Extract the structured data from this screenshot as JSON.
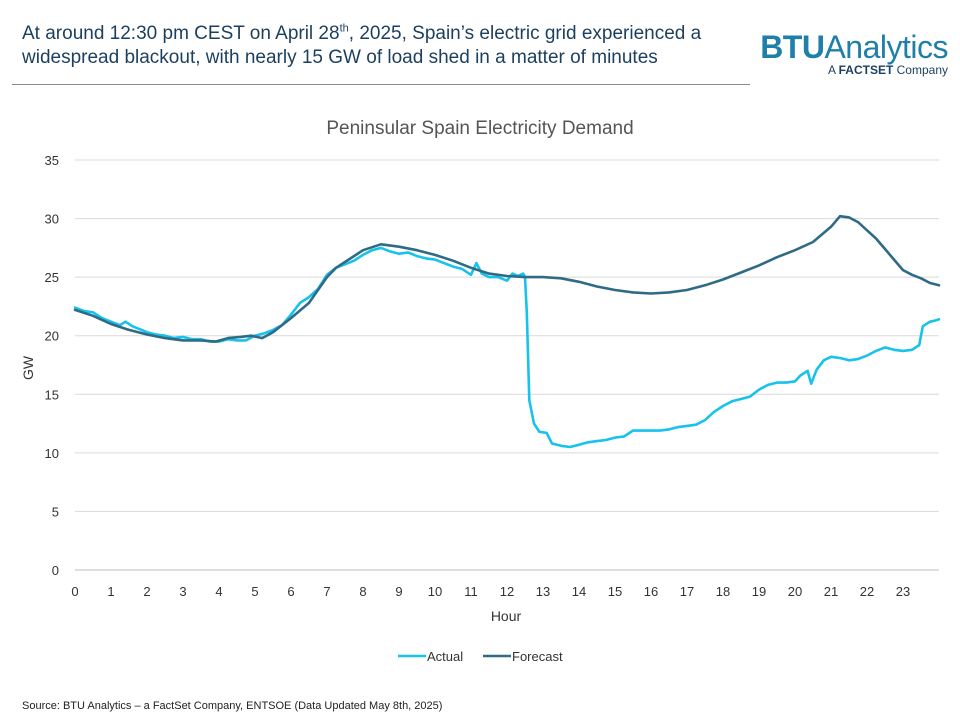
{
  "headline": {
    "part1": "At around 12:30 pm CEST on April 28",
    "sup": "th",
    "part2": ", 2025, Spain’s electric grid experienced a widespread blackout, with nearly 15 GW of load shed in a matter of minutes"
  },
  "logo": {
    "brand": "BTU",
    "name": "Analytics",
    "tagline_prefix": "A ",
    "tagline_brand": "FACTSET",
    "tagline_suffix": " Company"
  },
  "source": "Source: BTU Analytics – a FactSet Company, ENTSOE (Data Updated May 8th, 2025)",
  "colors": {
    "actual": "#17c2ec",
    "forecast": "#2f6b85",
    "grid": "#d9d9d9",
    "axis_text": "#333333"
  },
  "chart_data": {
    "type": "line",
    "title": "Peninsular Spain Electricity Demand",
    "xlabel": "Hour",
    "ylabel": "GW",
    "xlim": [
      0,
      24
    ],
    "ylim": [
      0,
      35
    ],
    "xticks": [
      0,
      1,
      2,
      3,
      4,
      5,
      6,
      7,
      8,
      9,
      10,
      11,
      12,
      13,
      14,
      15,
      16,
      17,
      18,
      19,
      20,
      21,
      22,
      23
    ],
    "yticks": [
      0,
      5,
      10,
      15,
      20,
      25,
      30,
      35
    ],
    "grid": "horizontal",
    "legend": "bottom-center",
    "series": [
      {
        "name": "Actual",
        "points": [
          [
            0,
            22.4
          ],
          [
            0.25,
            22.1
          ],
          [
            0.5,
            22.0
          ],
          [
            0.75,
            21.5
          ],
          [
            1,
            21.2
          ],
          [
            1.25,
            20.9
          ],
          [
            1.4,
            21.2
          ],
          [
            1.6,
            20.8
          ],
          [
            1.85,
            20.5
          ],
          [
            2,
            20.3
          ],
          [
            2.25,
            20.1
          ],
          [
            2.5,
            20.0
          ],
          [
            2.75,
            19.8
          ],
          [
            3,
            19.9
          ],
          [
            3.25,
            19.7
          ],
          [
            3.5,
            19.7
          ],
          [
            3.75,
            19.5
          ],
          [
            4,
            19.5
          ],
          [
            4.25,
            19.7
          ],
          [
            4.5,
            19.6
          ],
          [
            4.75,
            19.6
          ],
          [
            5,
            20.0
          ],
          [
            5.25,
            20.2
          ],
          [
            5.5,
            20.5
          ],
          [
            5.75,
            20.9
          ],
          [
            6,
            21.8
          ],
          [
            6.25,
            22.8
          ],
          [
            6.5,
            23.3
          ],
          [
            6.75,
            24.0
          ],
          [
            7,
            25.2
          ],
          [
            7.25,
            25.8
          ],
          [
            7.5,
            26.1
          ],
          [
            7.75,
            26.4
          ],
          [
            8,
            26.9
          ],
          [
            8.25,
            27.3
          ],
          [
            8.5,
            27.5
          ],
          [
            8.75,
            27.2
          ],
          [
            9,
            27.0
          ],
          [
            9.25,
            27.1
          ],
          [
            9.5,
            26.8
          ],
          [
            9.75,
            26.6
          ],
          [
            10,
            26.5
          ],
          [
            10.25,
            26.2
          ],
          [
            10.5,
            25.9
          ],
          [
            10.75,
            25.7
          ],
          [
            11,
            25.2
          ],
          [
            11.15,
            26.2
          ],
          [
            11.3,
            25.3
          ],
          [
            11.5,
            25.0
          ],
          [
            11.75,
            25.0
          ],
          [
            12,
            24.7
          ],
          [
            12.15,
            25.3
          ],
          [
            12.3,
            25.1
          ],
          [
            12.45,
            25.3
          ],
          [
            12.5,
            25.0
          ],
          [
            12.55,
            22.0
          ],
          [
            12.62,
            14.5
          ],
          [
            12.75,
            12.5
          ],
          [
            12.9,
            11.8
          ],
          [
            13.1,
            11.7
          ],
          [
            13.25,
            10.8
          ],
          [
            13.5,
            10.6
          ],
          [
            13.75,
            10.5
          ],
          [
            14,
            10.7
          ],
          [
            14.25,
            10.9
          ],
          [
            14.5,
            11.0
          ],
          [
            14.75,
            11.1
          ],
          [
            15,
            11.3
          ],
          [
            15.25,
            11.4
          ],
          [
            15.5,
            11.9
          ],
          [
            15.75,
            11.9
          ],
          [
            16,
            11.9
          ],
          [
            16.25,
            11.9
          ],
          [
            16.5,
            12.0
          ],
          [
            16.75,
            12.2
          ],
          [
            17,
            12.3
          ],
          [
            17.25,
            12.4
          ],
          [
            17.5,
            12.8
          ],
          [
            17.75,
            13.5
          ],
          [
            18,
            14.0
          ],
          [
            18.25,
            14.4
          ],
          [
            18.5,
            14.6
          ],
          [
            18.75,
            14.8
          ],
          [
            19,
            15.4
          ],
          [
            19.25,
            15.8
          ],
          [
            19.5,
            16.0
          ],
          [
            19.75,
            16.0
          ],
          [
            20,
            16.1
          ],
          [
            20.15,
            16.6
          ],
          [
            20.35,
            17.0
          ],
          [
            20.45,
            15.9
          ],
          [
            20.6,
            17.1
          ],
          [
            20.8,
            17.9
          ],
          [
            21,
            18.2
          ],
          [
            21.25,
            18.1
          ],
          [
            21.5,
            17.9
          ],
          [
            21.75,
            18.0
          ],
          [
            22,
            18.3
          ],
          [
            22.25,
            18.7
          ],
          [
            22.5,
            19.0
          ],
          [
            22.75,
            18.8
          ],
          [
            23,
            18.7
          ],
          [
            23.25,
            18.8
          ],
          [
            23.45,
            19.2
          ],
          [
            23.55,
            20.8
          ],
          [
            23.75,
            21.2
          ],
          [
            23.9,
            21.3
          ],
          [
            24,
            21.4
          ]
        ]
      },
      {
        "name": "Forecast",
        "points": [
          [
            0,
            22.2
          ],
          [
            0.5,
            21.7
          ],
          [
            1,
            21.0
          ],
          [
            1.5,
            20.5
          ],
          [
            2,
            20.1
          ],
          [
            2.5,
            19.8
          ],
          [
            3,
            19.6
          ],
          [
            3.5,
            19.6
          ],
          [
            3.9,
            19.5
          ],
          [
            4.25,
            19.8
          ],
          [
            4.6,
            19.9
          ],
          [
            4.9,
            20.0
          ],
          [
            5.2,
            19.8
          ],
          [
            5.5,
            20.3
          ],
          [
            6,
            21.5
          ],
          [
            6.5,
            22.8
          ],
          [
            7,
            25.0
          ],
          [
            7.25,
            25.8
          ],
          [
            7.5,
            26.3
          ],
          [
            7.75,
            26.8
          ],
          [
            8,
            27.3
          ],
          [
            8.5,
            27.8
          ],
          [
            9,
            27.6
          ],
          [
            9.5,
            27.3
          ],
          [
            10,
            26.9
          ],
          [
            10.5,
            26.4
          ],
          [
            11,
            25.8
          ],
          [
            11.5,
            25.3
          ],
          [
            12,
            25.1
          ],
          [
            12.5,
            25.0
          ],
          [
            13,
            25.0
          ],
          [
            13.5,
            24.9
          ],
          [
            14,
            24.6
          ],
          [
            14.5,
            24.2
          ],
          [
            15,
            23.9
          ],
          [
            15.5,
            23.7
          ],
          [
            16,
            23.6
          ],
          [
            16.5,
            23.7
          ],
          [
            17,
            23.9
          ],
          [
            17.5,
            24.3
          ],
          [
            18,
            24.8
          ],
          [
            18.5,
            25.4
          ],
          [
            19,
            26.0
          ],
          [
            19.5,
            26.7
          ],
          [
            20,
            27.3
          ],
          [
            20.5,
            28.0
          ],
          [
            21,
            29.3
          ],
          [
            21.25,
            30.2
          ],
          [
            21.5,
            30.1
          ],
          [
            21.75,
            29.7
          ],
          [
            22,
            29.0
          ],
          [
            22.25,
            28.3
          ],
          [
            22.5,
            27.4
          ],
          [
            22.75,
            26.5
          ],
          [
            23,
            25.6
          ],
          [
            23.25,
            25.2
          ],
          [
            23.5,
            24.9
          ],
          [
            23.75,
            24.5
          ],
          [
            24,
            24.3
          ]
        ]
      }
    ]
  }
}
